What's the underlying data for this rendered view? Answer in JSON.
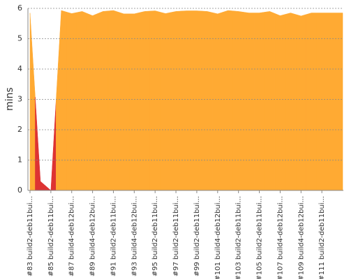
{
  "chart_data": {
    "type": "area",
    "y_label": "mins",
    "categories": [
      "#83 build2-deb11bui...",
      null,
      "#85 build2-deb11bui...",
      null,
      "#87 build4-deb12bui...",
      null,
      "#89 build4-deb12bui...",
      null,
      "#91 build2-deb11bui...",
      null,
      "#93 build4-deb12bui...",
      null,
      "#95 build2-deb11bui...",
      null,
      "#97 build2-deb11bui...",
      null,
      "#99 build2-deb11bui...",
      null,
      "#101 build4-deb12bui...",
      null,
      "#103 build2-deb11bui...",
      null,
      "#105 build2-deb11bui...",
      null,
      "#107 build4-deb12bui...",
      null,
      "#109 build4-deb12bui...",
      null,
      "#111 build2-deb11bui...",
      null,
      null
    ],
    "series": [
      {
        "color": "#ffaa33",
        "values": [
          5.85,
          null,
          null,
          5.93,
          5.83,
          5.9,
          5.76,
          5.9,
          5.93,
          5.82,
          5.82,
          5.9,
          5.92,
          5.83,
          5.9,
          5.92,
          5.92,
          5.9,
          5.82,
          5.93,
          5.9,
          5.85,
          5.85,
          5.9,
          5.76,
          5.85,
          5.75,
          5.85,
          5.85,
          5.85,
          5.85
        ]
      },
      {
        "color": "#dd3333",
        "values": [
          null,
          0.3,
          0.0,
          null,
          null,
          null,
          null,
          null,
          null,
          null,
          null,
          null,
          null,
          null,
          null,
          null,
          null,
          null,
          null,
          null,
          null,
          null,
          null,
          null,
          null,
          null,
          null,
          null,
          null,
          null,
          null
        ]
      }
    ],
    "ylim": [
      0,
      6
    ],
    "yticks": [
      0,
      1,
      2,
      3,
      4,
      5,
      6
    ],
    "grid": true
  }
}
